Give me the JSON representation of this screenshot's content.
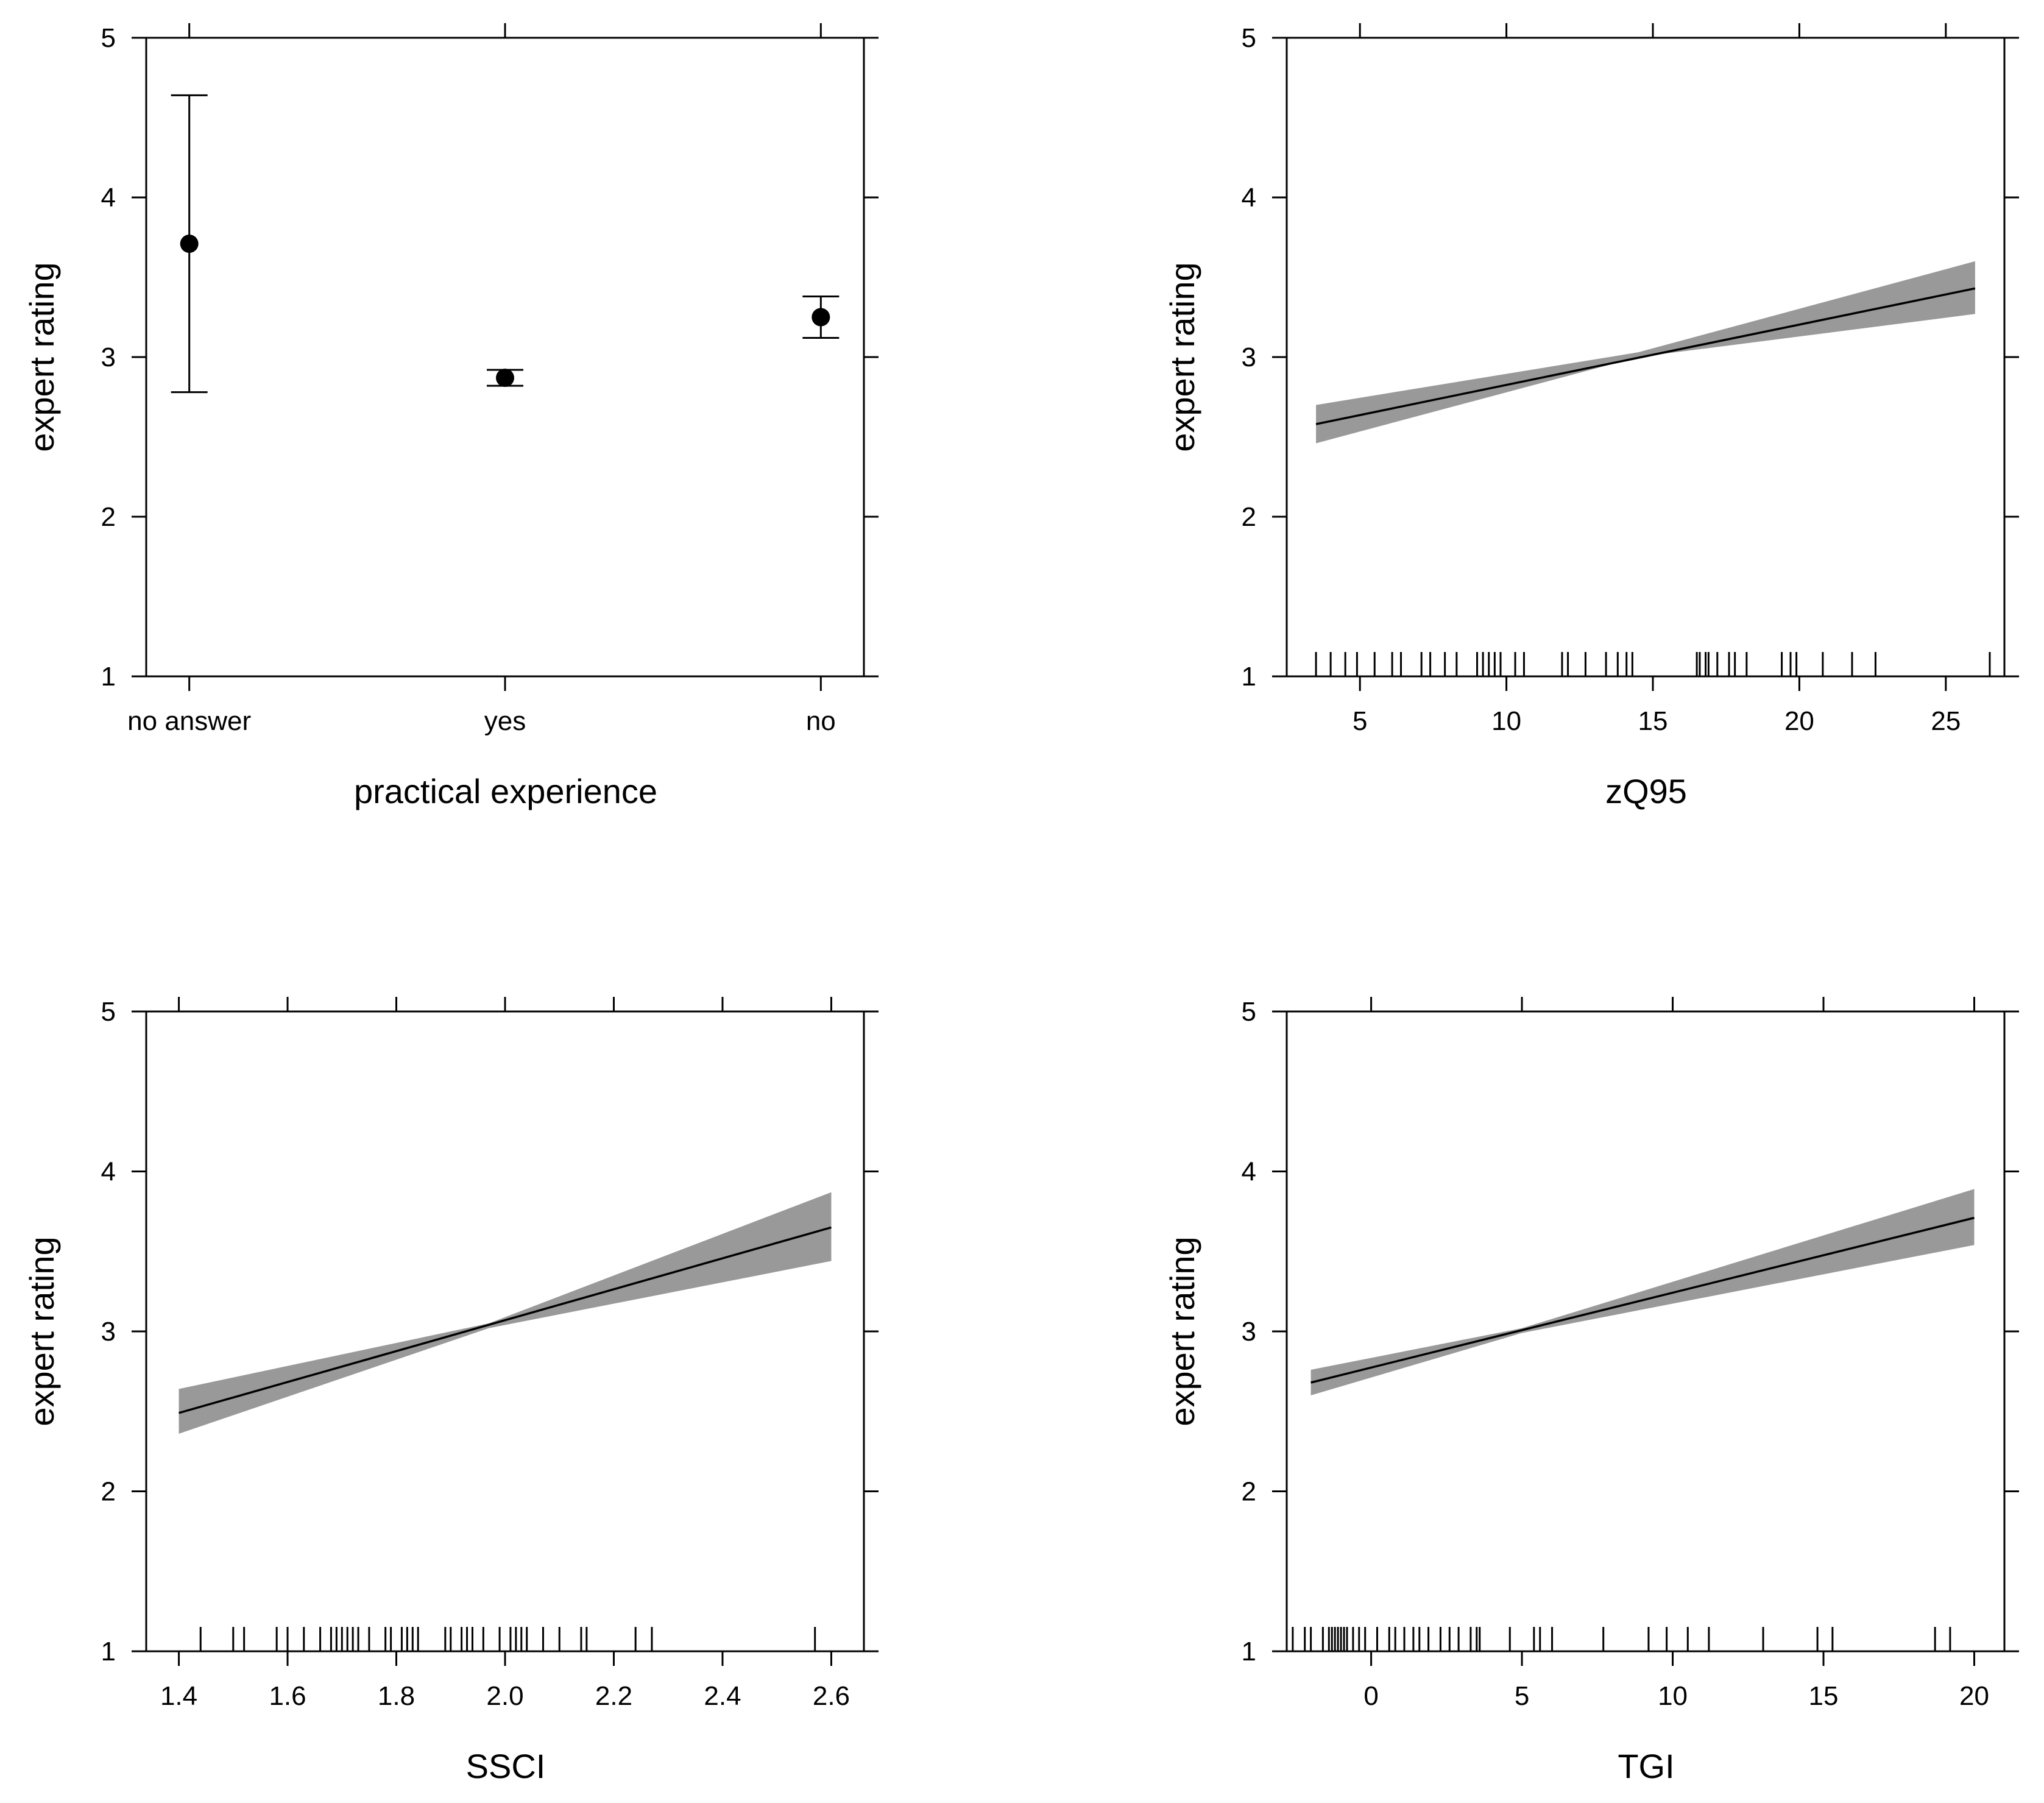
{
  "chart_data": [
    {
      "type": "scatter",
      "xlabel": "practical experience",
      "ylabel": "expert rating",
      "ylim": [
        1,
        5
      ],
      "yticks": [
        "1",
        "2",
        "3",
        "4",
        "5"
      ],
      "categories": [
        "no answer",
        "yes",
        "no"
      ],
      "points": [
        {
          "category": "no answer",
          "y": 3.71,
          "lower": 2.78,
          "upper": 4.64
        },
        {
          "category": "yes",
          "y": 2.87,
          "lower": 2.82,
          "upper": 2.92
        },
        {
          "category": "no",
          "y": 3.25,
          "lower": 3.12,
          "upper": 3.38
        }
      ]
    },
    {
      "type": "line",
      "xlabel": "zQ95",
      "ylabel": "expert rating",
      "xlim": [
        2.5,
        27.0
      ],
      "ylim": [
        1,
        5
      ],
      "xticks": [
        "5",
        "10",
        "15",
        "20",
        "25"
      ],
      "yticks": [
        "1",
        "2",
        "3",
        "4",
        "5"
      ],
      "fit": {
        "x": [
          3.5,
          26.0
        ],
        "y": [
          2.58,
          3.43
        ]
      },
      "band": {
        "x": [
          3.5,
          14.5,
          26.0
        ],
        "lower": [
          2.46,
          3.0,
          3.27
        ],
        "upper": [
          2.7,
          3.03,
          3.6
        ]
      },
      "rug": [
        3.5,
        4.0,
        4.5,
        4.9,
        5.5,
        6.1,
        6.4,
        7.1,
        7.4,
        7.9,
        8.3,
        9.0,
        9.2,
        9.4,
        9.6,
        9.8,
        10.3,
        10.6,
        11.9,
        12.1,
        12.7,
        13.4,
        13.8,
        14.1,
        14.3,
        16.5,
        16.6,
        16.8,
        16.9,
        17.2,
        17.6,
        17.8,
        18.2,
        19.4,
        19.7,
        19.9,
        20.8,
        21.8,
        22.6,
        26.5
      ]
    },
    {
      "type": "line",
      "xlabel": "SSCI",
      "ylabel": "expert rating",
      "xlim": [
        1.34,
        2.66
      ],
      "ylim": [
        1,
        5
      ],
      "xticks": [
        "1.4",
        "1.6",
        "1.8",
        "2.0",
        "2.2",
        "2.4",
        "2.6"
      ],
      "yticks": [
        "1",
        "2",
        "3",
        "4",
        "5"
      ],
      "fit": {
        "x": [
          1.4,
          2.6
        ],
        "y": [
          2.49,
          3.65
        ]
      },
      "band": {
        "x": [
          1.4,
          1.97,
          2.6
        ],
        "lower": [
          2.36,
          3.02,
          3.44
        ],
        "upper": [
          2.64,
          3.05,
          3.87
        ]
      },
      "rug": [
        1.44,
        1.5,
        1.52,
        1.58,
        1.6,
        1.63,
        1.66,
        1.68,
        1.69,
        1.7,
        1.71,
        1.72,
        1.73,
        1.75,
        1.78,
        1.79,
        1.81,
        1.82,
        1.83,
        1.84,
        1.89,
        1.9,
        1.92,
        1.93,
        1.94,
        1.96,
        1.99,
        2.01,
        2.02,
        2.03,
        2.04,
        2.07,
        2.1,
        2.14,
        2.15,
        2.24,
        2.27,
        2.57
      ]
    },
    {
      "type": "line",
      "xlabel": "TGI",
      "ylabel": "expert rating",
      "xlim": [
        -2.8,
        21.0
      ],
      "ylim": [
        1,
        5
      ],
      "xticks": [
        "0",
        "5",
        "10",
        "15",
        "20"
      ],
      "yticks": [
        "1",
        "2",
        "3",
        "4",
        "5"
      ],
      "fit": {
        "x": [
          -2.0,
          20.0
        ],
        "y": [
          2.68,
          3.71
        ]
      },
      "band": {
        "x": [
          -2.0,
          5.0,
          20.0
        ],
        "lower": [
          2.6,
          2.99,
          3.54
        ],
        "upper": [
          2.76,
          3.02,
          3.89
        ]
      },
      "rug": [
        -2.6,
        -2.2,
        -2.0,
        -1.6,
        -1.4,
        -1.3,
        -1.2,
        -1.1,
        -1.0,
        -0.9,
        -0.8,
        -0.6,
        -0.4,
        -0.2,
        0.2,
        0.6,
        0.8,
        1.1,
        1.4,
        1.6,
        1.9,
        2.3,
        2.6,
        2.9,
        3.3,
        3.5,
        3.6,
        4.6,
        5.4,
        5.6,
        6.0,
        7.7,
        9.2,
        9.8,
        10.5,
        11.2,
        13.0,
        14.8,
        15.3,
        18.7,
        19.2
      ]
    }
  ]
}
